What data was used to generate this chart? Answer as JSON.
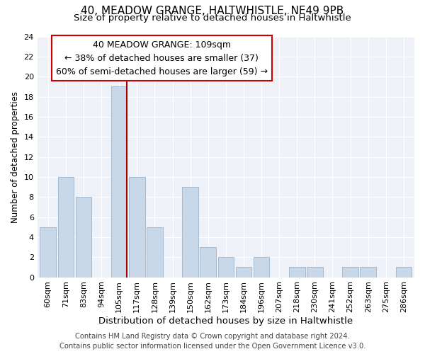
{
  "title": "40, MEADOW GRANGE, HALTWHISTLE, NE49 9PB",
  "subtitle": "Size of property relative to detached houses in Haltwhistle",
  "xlabel": "Distribution of detached houses by size in Haltwhistle",
  "ylabel": "Number of detached properties",
  "bar_labels": [
    "60sqm",
    "71sqm",
    "83sqm",
    "94sqm",
    "105sqm",
    "117sqm",
    "128sqm",
    "139sqm",
    "150sqm",
    "162sqm",
    "173sqm",
    "184sqm",
    "196sqm",
    "207sqm",
    "218sqm",
    "230sqm",
    "241sqm",
    "252sqm",
    "263sqm",
    "275sqm",
    "286sqm"
  ],
  "bar_heights": [
    5,
    10,
    8,
    0,
    19,
    10,
    5,
    0,
    9,
    3,
    2,
    1,
    2,
    0,
    1,
    1,
    0,
    1,
    1,
    0,
    1
  ],
  "bar_color": "#c8d8e8",
  "bar_edge_color": "#9ab5cc",
  "highlight_bar_index": 4,
  "highlight_color": "#aa0000",
  "ylim": [
    0,
    24
  ],
  "yticks": [
    0,
    2,
    4,
    6,
    8,
    10,
    12,
    14,
    16,
    18,
    20,
    22,
    24
  ],
  "annotation_title": "40 MEADOW GRANGE: 109sqm",
  "annotation_line1": "← 38% of detached houses are smaller (37)",
  "annotation_line2": "60% of semi-detached houses are larger (59) →",
  "annotation_box_color": "#ffffff",
  "annotation_box_edge": "#cc0000",
  "footer_line1": "Contains HM Land Registry data © Crown copyright and database right 2024.",
  "footer_line2": "Contains public sector information licensed under the Open Government Licence v3.0.",
  "background_color": "#ffffff",
  "plot_bg_color": "#eef2f8",
  "grid_color": "#ffffff",
  "title_fontsize": 11,
  "subtitle_fontsize": 9.5,
  "xlabel_fontsize": 9.5,
  "ylabel_fontsize": 8.5,
  "tick_fontsize": 8,
  "annotation_fontsize": 9,
  "footer_fontsize": 7.2
}
